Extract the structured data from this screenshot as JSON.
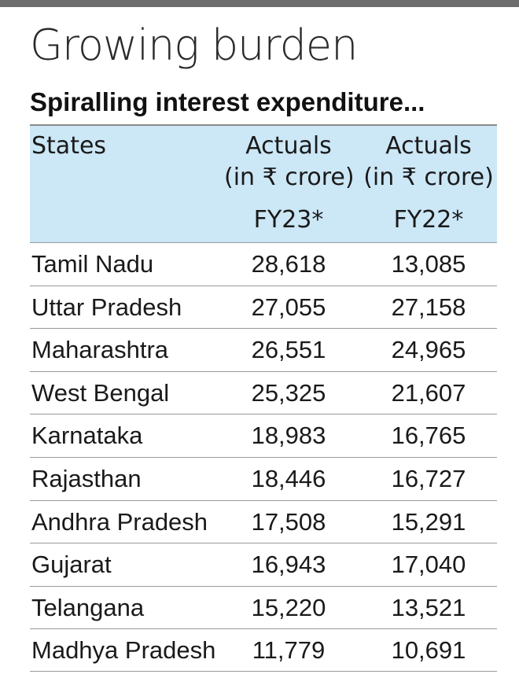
{
  "title": "Growing burden",
  "subtitle": "Spiralling interest expenditure...",
  "chart_data": {
    "type": "table",
    "title": "Growing burden",
    "subtitle": "Spiralling interest expenditure...",
    "columns": {
      "state": "States",
      "col1_line1": "Actuals",
      "col1_line2": "(in ₹ crore)",
      "col1_year": "FY23*",
      "col2_line1": "Actuals",
      "col2_line2": "(in ₹ crore)",
      "col2_year": "FY22*"
    },
    "rows": [
      {
        "state": "Tamil Nadu",
        "fy23": "28,618",
        "fy22": "13,085"
      },
      {
        "state": "Uttar Pradesh",
        "fy23": "27,055",
        "fy22": "27,158"
      },
      {
        "state": "Maharashtra",
        "fy23": "26,551",
        "fy22": "24,965"
      },
      {
        "state": "West Bengal",
        "fy23": "25,325",
        "fy22": "21,607"
      },
      {
        "state": "Karnataka",
        "fy23": "18,983",
        "fy22": "16,765"
      },
      {
        "state": "Rajasthan",
        "fy23": "18,446",
        "fy22": "16,727"
      },
      {
        "state": "Andhra Pradesh",
        "fy23": "17,508",
        "fy22": "15,291"
      },
      {
        "state": "Gujarat",
        "fy23": "16,943",
        "fy22": "17,040"
      },
      {
        "state": "Telangana",
        "fy23": "15,220",
        "fy22": "13,521"
      },
      {
        "state": "Madhya Pradesh",
        "fy23": "11,779",
        "fy22": "10,691"
      }
    ],
    "header_color": "#cce7f6"
  }
}
